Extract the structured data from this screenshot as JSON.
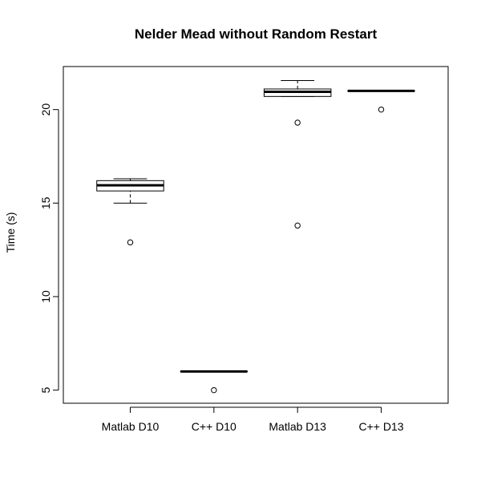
{
  "chart_data": {
    "type": "boxplot",
    "title": "Nelder Mead without Random Restart",
    "xlabel": "",
    "ylabel": "Time (s)",
    "ylim": [
      4.3,
      22.3
    ],
    "yticks": [
      5,
      10,
      15,
      20
    ],
    "categories": [
      "Matlab D10",
      "C++ D10",
      "Matlab D13",
      "C++ D13"
    ],
    "boxes": [
      {
        "category": "Matlab D10",
        "whisker_low": 15.0,
        "q1": 15.65,
        "median": 15.95,
        "q3": 16.2,
        "whisker_high": 16.3,
        "outliers": [
          12.9
        ]
      },
      {
        "category": "C++ D10",
        "whisker_low": 6.0,
        "q1": 6.0,
        "median": 6.0,
        "q3": 6.0,
        "whisker_high": 6.0,
        "outliers": [
          5.0
        ]
      },
      {
        "category": "Matlab D13",
        "whisker_low": 20.7,
        "q1": 20.7,
        "median": 20.95,
        "q3": 21.1,
        "whisker_high": 21.55,
        "outliers": [
          19.3,
          13.8
        ]
      },
      {
        "category": "C++ D13",
        "whisker_low": 21.0,
        "q1": 21.0,
        "median": 21.0,
        "q3": 21.0,
        "whisker_high": 21.0,
        "outliers": [
          20.0
        ]
      }
    ],
    "grid": false,
    "legend": "none"
  }
}
